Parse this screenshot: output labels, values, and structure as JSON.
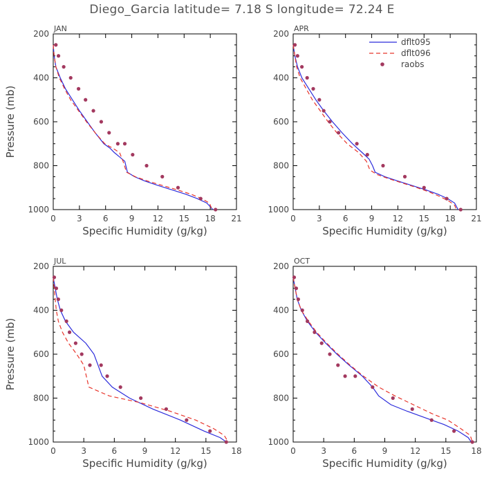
{
  "figure": {
    "title": "Diego_Garcia  latitude= 7.18 S longitude= 72.24 E",
    "ylabel": "Pressure (mb)",
    "xlabel": "Specific Humidity (g/kg)",
    "legend": {
      "placement": "top-right of APR panel",
      "entries": [
        {
          "name": "dflt095",
          "style": "solid line",
          "color": "#2b2bdb"
        },
        {
          "name": "dflt096",
          "style": "dashed line",
          "color": "#e8342a"
        },
        {
          "name": "raobs",
          "style": "dots",
          "color": "#a3395f"
        }
      ]
    }
  },
  "colors": {
    "model_095": "#2b2bdb",
    "model_096": "#e8342a",
    "obs": "#a3395f",
    "axes": "#000000",
    "text": "#444444"
  },
  "chart_data": [
    {
      "type": "line",
      "panel": "JAN",
      "xlabel": "Specific Humidity (g/kg)",
      "ylabel": "Pressure (mb)",
      "xlim": [
        0,
        21
      ],
      "xticks": [
        0,
        3,
        6,
        9,
        12,
        15,
        18,
        21
      ],
      "ylim": [
        200,
        1000
      ],
      "yticks": [
        200,
        400,
        600,
        800,
        1000
      ],
      "y_inverted": true,
      "series": [
        {
          "name": "dflt095",
          "x": [
            0.0,
            0.1,
            0.3,
            0.8,
            1.4,
            2.2,
            3.0,
            3.9,
            4.8,
            5.8,
            6.5,
            7.0,
            7.6,
            8.2,
            8.5,
            9.3,
            10.5,
            12.0,
            13.6,
            15.2,
            16.5,
            17.6,
            18.3
          ],
          "y": [
            250,
            300,
            350,
            400,
            450,
            500,
            550,
            600,
            650,
            700,
            720,
            740,
            760,
            780,
            830,
            850,
            870,
            890,
            910,
            930,
            950,
            970,
            1000
          ]
        },
        {
          "name": "dflt096",
          "x": [
            0.0,
            0.1,
            0.3,
            0.7,
            1.3,
            2.0,
            2.9,
            3.8,
            4.8,
            5.9,
            6.8,
            7.6,
            8.0,
            8.4,
            9.4,
            10.8,
            12.5,
            14.2,
            15.8,
            17.0,
            17.9,
            18.2
          ],
          "y": [
            250,
            300,
            350,
            400,
            450,
            500,
            550,
            600,
            650,
            700,
            720,
            740,
            780,
            830,
            850,
            870,
            890,
            910,
            930,
            950,
            970,
            1000
          ]
        },
        {
          "name": "raobs",
          "x": [
            0.3,
            0.6,
            1.2,
            2.0,
            2.9,
            3.7,
            4.6,
            5.5,
            6.4,
            7.4,
            8.2,
            9.1,
            10.7,
            12.5,
            14.3,
            16.9,
            18.6
          ],
          "y": [
            250,
            300,
            350,
            400,
            450,
            500,
            550,
            600,
            650,
            700,
            700,
            750,
            800,
            850,
            900,
            950,
            1000
          ]
        }
      ]
    },
    {
      "type": "line",
      "panel": "APR",
      "xlabel": "Specific Humidity (g/kg)",
      "ylabel": "",
      "xlim": [
        0,
        21
      ],
      "xticks": [
        0,
        3,
        6,
        9,
        12,
        15,
        18,
        21
      ],
      "ylim": [
        200,
        1000
      ],
      "yticks": [
        200,
        400,
        600,
        800,
        1000
      ],
      "y_inverted": true,
      "series": [
        {
          "name": "dflt095",
          "x": [
            0.0,
            0.2,
            0.5,
            1.0,
            1.8,
            2.6,
            3.5,
            4.5,
            5.6,
            6.8,
            7.9,
            8.7,
            9.1,
            9.4,
            10.5,
            12.0,
            13.6,
            15.2,
            16.6,
            17.7,
            18.5,
            18.9
          ],
          "y": [
            250,
            300,
            350,
            400,
            450,
            500,
            550,
            600,
            650,
            700,
            740,
            770,
            800,
            830,
            850,
            870,
            890,
            910,
            930,
            950,
            970,
            1000
          ]
        },
        {
          "name": "dflt096",
          "x": [
            0.0,
            0.2,
            0.4,
            0.8,
            1.5,
            2.2,
            3.1,
            4.0,
            5.0,
            6.2,
            7.5,
            8.4,
            8.8,
            9.6,
            11.0,
            12.6,
            14.2,
            15.6,
            16.8,
            17.8,
            18.5,
            18.7
          ],
          "y": [
            250,
            300,
            350,
            400,
            450,
            500,
            550,
            600,
            650,
            700,
            740,
            780,
            820,
            840,
            860,
            880,
            900,
            920,
            940,
            960,
            980,
            1000
          ]
        },
        {
          "name": "raobs",
          "x": [
            0.2,
            0.5,
            1.0,
            1.6,
            2.3,
            3.0,
            3.5,
            4.2,
            5.2,
            7.3,
            8.5,
            10.3,
            12.8,
            15.0,
            17.6,
            19.2
          ],
          "y": [
            250,
            300,
            350,
            400,
            450,
            500,
            550,
            600,
            650,
            700,
            750,
            800,
            850,
            900,
            950,
            1000
          ]
        }
      ]
    },
    {
      "type": "line",
      "panel": "JUL",
      "xlabel": "Specific Humidity (g/kg)",
      "ylabel": "Pressure (mb)",
      "xlim": [
        0,
        18
      ],
      "xticks": [
        0,
        3,
        6,
        9,
        12,
        15,
        18
      ],
      "ylim": [
        200,
        1000
      ],
      "yticks": [
        200,
        400,
        600,
        800,
        1000
      ],
      "y_inverted": true,
      "series": [
        {
          "name": "dflt095",
          "x": [
            0.0,
            0.2,
            0.4,
            0.7,
            1.2,
            2.0,
            3.2,
            4.0,
            4.4,
            4.8,
            5.8,
            7.5,
            9.8,
            12.5,
            14.8,
            16.4,
            17.0
          ],
          "y": [
            250,
            300,
            350,
            400,
            450,
            500,
            550,
            600,
            650,
            700,
            750,
            800,
            850,
            900,
            950,
            980,
            1000
          ]
        },
        {
          "name": "dflt096",
          "x": [
            0.0,
            0.1,
            0.2,
            0.3,
            0.5,
            0.9,
            1.5,
            2.3,
            3.0,
            3.5,
            5.5,
            8.5,
            11.5,
            14.0,
            15.8,
            16.8,
            17.2
          ],
          "y": [
            250,
            300,
            350,
            400,
            450,
            500,
            550,
            600,
            650,
            750,
            790,
            820,
            860,
            900,
            940,
            970,
            1000
          ]
        },
        {
          "name": "raobs",
          "x": [
            0.1,
            0.3,
            0.5,
            0.8,
            1.3,
            1.6,
            2.2,
            2.8,
            3.6,
            4.7,
            5.3,
            6.6,
            8.6,
            11.1,
            13.1,
            15.4,
            17.0
          ],
          "y": [
            250,
            300,
            350,
            400,
            450,
            500,
            550,
            600,
            650,
            650,
            700,
            750,
            800,
            850,
            900,
            950,
            1000
          ]
        }
      ]
    },
    {
      "type": "line",
      "panel": "OCT",
      "xlabel": "Specific Humidity (g/kg)",
      "ylabel": "",
      "xlim": [
        0,
        18
      ],
      "xticks": [
        0,
        3,
        6,
        9,
        12,
        15,
        18
      ],
      "ylim": [
        200,
        1000
      ],
      "yticks": [
        200,
        400,
        600,
        800,
        1000
      ],
      "y_inverted": true,
      "series": [
        {
          "name": "dflt095",
          "x": [
            0.0,
            0.2,
            0.4,
            0.8,
            1.4,
            2.2,
            3.2,
            4.3,
            5.5,
            6.8,
            7.8,
            8.4,
            9.6,
            11.2,
            13.0,
            14.8,
            16.2,
            17.2,
            17.5
          ],
          "y": [
            250,
            300,
            350,
            400,
            450,
            500,
            550,
            600,
            650,
            700,
            750,
            790,
            830,
            860,
            890,
            920,
            950,
            980,
            1000
          ]
        },
        {
          "name": "dflt096",
          "x": [
            0.0,
            0.2,
            0.4,
            0.8,
            1.5,
            2.3,
            3.3,
            4.4,
            5.6,
            6.9,
            8.4,
            10.0,
            11.8,
            13.6,
            15.2,
            16.5,
            17.4,
            17.6
          ],
          "y": [
            250,
            300,
            350,
            400,
            450,
            500,
            550,
            600,
            650,
            700,
            750,
            790,
            830,
            870,
            900,
            940,
            970,
            1000
          ]
        },
        {
          "name": "raobs",
          "x": [
            0.1,
            0.3,
            0.5,
            0.9,
            1.4,
            2.1,
            2.8,
            3.6,
            4.4,
            5.1,
            6.1,
            7.8,
            9.8,
            11.7,
            13.6,
            15.8,
            17.6
          ],
          "y": [
            250,
            300,
            350,
            400,
            450,
            500,
            550,
            600,
            650,
            700,
            700,
            750,
            800,
            850,
            900,
            950,
            1000
          ]
        }
      ]
    }
  ]
}
